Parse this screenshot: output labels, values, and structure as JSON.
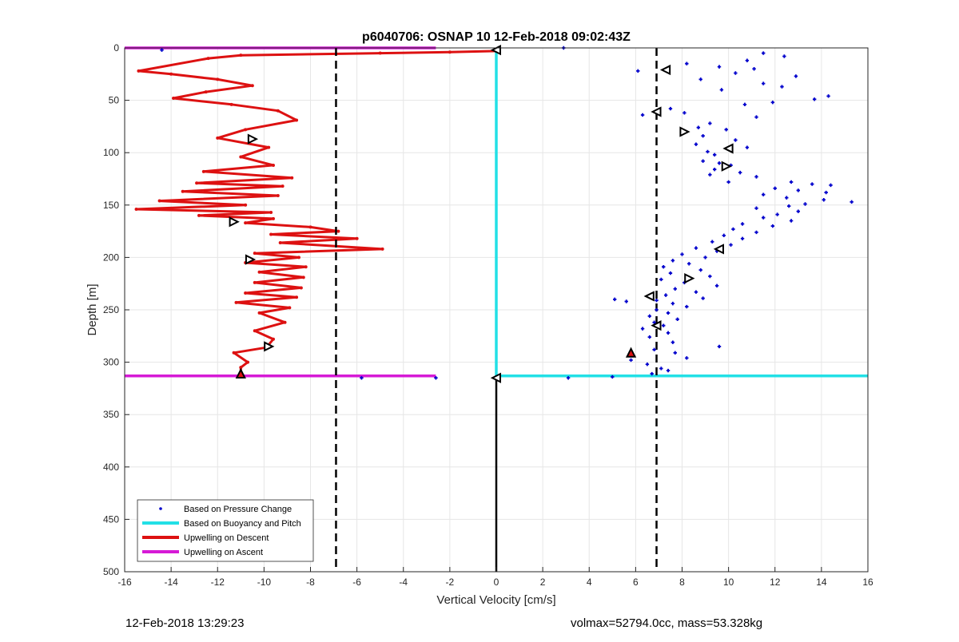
{
  "chart_data": {
    "type": "line",
    "title": "p6040706: OSNAP 10 12-Feb-2018 09:02:43Z",
    "xlabel": "Vertical Velocity [cm/s]",
    "ylabel": "Depth [m]",
    "xlim": [
      -16,
      16
    ],
    "ylim": [
      500,
      0
    ],
    "y_reversed": true,
    "grid": true,
    "xticks": [
      -16,
      -14,
      -12,
      -10,
      -8,
      -6,
      -4,
      -2,
      0,
      2,
      4,
      6,
      8,
      10,
      12,
      14,
      16
    ],
    "yticks": [
      0,
      50,
      100,
      150,
      200,
      250,
      300,
      350,
      400,
      450,
      500
    ],
    "legend_position": "bottom-left",
    "reference_lines": [
      {
        "type": "vertical-dashed",
        "x": -6.9
      },
      {
        "type": "vertical-dashed",
        "x": 6.9
      },
      {
        "type": "vertical-solid",
        "x": 0,
        "y_from": 316,
        "y_to": 500
      }
    ],
    "series": [
      {
        "name": "Based on Pressure Change",
        "style": "scatter",
        "color": "#0000cc",
        "points": [
          [
            2.9,
            0
          ],
          [
            11.5,
            5
          ],
          [
            12.4,
            8
          ],
          [
            10.8,
            12
          ],
          [
            8.2,
            15
          ],
          [
            9.6,
            18
          ],
          [
            11.1,
            20
          ],
          [
            6.1,
            22
          ],
          [
            10.3,
            24
          ],
          [
            12.9,
            27
          ],
          [
            8.8,
            30
          ],
          [
            11.5,
            34
          ],
          [
            12.3,
            37
          ],
          [
            9.7,
            40
          ],
          [
            14.3,
            46
          ],
          [
            13.7,
            49
          ],
          [
            11.9,
            52
          ],
          [
            10.7,
            54
          ],
          [
            7.5,
            58
          ],
          [
            8.1,
            62
          ],
          [
            11.2,
            66
          ],
          [
            6.3,
            64
          ],
          [
            9.2,
            72
          ],
          [
            8.7,
            76
          ],
          [
            9.9,
            78
          ],
          [
            8.9,
            84
          ],
          [
            10.3,
            88
          ],
          [
            8.6,
            92
          ],
          [
            9.1,
            99
          ],
          [
            10.8,
            95
          ],
          [
            9.4,
            102
          ],
          [
            8.9,
            108
          ],
          [
            9.6,
            110
          ],
          [
            10.1,
            112
          ],
          [
            9.4,
            116
          ],
          [
            10.5,
            119
          ],
          [
            9.2,
            121
          ],
          [
            11.2,
            123
          ],
          [
            10.0,
            128
          ],
          [
            12.7,
            128
          ],
          [
            13.6,
            130
          ],
          [
            14.4,
            131
          ],
          [
            12.0,
            134
          ],
          [
            13.0,
            136
          ],
          [
            14.2,
            138
          ],
          [
            11.5,
            140
          ],
          [
            12.5,
            143
          ],
          [
            14.1,
            145
          ],
          [
            15.3,
            147
          ],
          [
            13.3,
            149
          ],
          [
            12.6,
            151
          ],
          [
            11.2,
            153
          ],
          [
            13.0,
            156
          ],
          [
            12.1,
            159
          ],
          [
            11.5,
            162
          ],
          [
            12.7,
            165
          ],
          [
            10.6,
            168
          ],
          [
            11.9,
            170
          ],
          [
            10.2,
            173
          ],
          [
            11.2,
            176
          ],
          [
            9.8,
            179
          ],
          [
            10.6,
            182
          ],
          [
            9.3,
            185
          ],
          [
            10.1,
            188
          ],
          [
            8.6,
            191
          ],
          [
            9.5,
            194
          ],
          [
            8.0,
            197
          ],
          [
            9.0,
            200
          ],
          [
            7.6,
            203
          ],
          [
            8.3,
            206
          ],
          [
            7.2,
            209
          ],
          [
            8.8,
            212
          ],
          [
            7.5,
            215
          ],
          [
            9.2,
            218
          ],
          [
            7.1,
            221
          ],
          [
            8.1,
            224
          ],
          [
            9.5,
            227
          ],
          [
            7.7,
            230
          ],
          [
            8.6,
            233
          ],
          [
            7.3,
            236
          ],
          [
            8.9,
            239
          ],
          [
            6.9,
            241
          ],
          [
            5.1,
            240
          ],
          [
            5.6,
            242
          ],
          [
            7.6,
            244
          ],
          [
            8.2,
            247
          ],
          [
            6.9,
            250
          ],
          [
            7.4,
            253
          ],
          [
            6.6,
            256
          ],
          [
            7.8,
            259
          ],
          [
            6.8,
            262
          ],
          [
            7.2,
            265
          ],
          [
            6.3,
            268
          ],
          [
            7.4,
            272
          ],
          [
            6.6,
            276
          ],
          [
            7.6,
            281
          ],
          [
            9.6,
            285
          ],
          [
            6.8,
            288
          ],
          [
            7.7,
            291
          ],
          [
            8.2,
            296
          ],
          [
            5.8,
            298
          ],
          [
            6.5,
            302
          ],
          [
            7.1,
            306
          ],
          [
            7.4,
            308
          ],
          [
            6.7,
            311
          ],
          [
            -14.4,
            2
          ],
          [
            -5.8,
            315
          ],
          [
            -2.6,
            315
          ],
          [
            3.1,
            315
          ],
          [
            5.0,
            314
          ]
        ]
      },
      {
        "name": "Based on Buoyancy and Pitch",
        "style": "line",
        "color": "#22e0e6",
        "points": [
          [
            0,
            0
          ],
          [
            0,
            313
          ],
          [
            16,
            313
          ]
        ]
      },
      {
        "name": "Upwelling on Descent",
        "style": "line",
        "color": "#dd1111",
        "points": [
          [
            0,
            3
          ],
          [
            -2,
            4
          ],
          [
            -5,
            5
          ],
          [
            -11,
            7
          ],
          [
            -12.4,
            10
          ],
          [
            -15.4,
            22
          ],
          [
            -14.0,
            25
          ],
          [
            -12.0,
            30
          ],
          [
            -10.5,
            36
          ],
          [
            -12.5,
            42
          ],
          [
            -13.9,
            48
          ],
          [
            -11.4,
            54
          ],
          [
            -9.4,
            60
          ],
          [
            -8.6,
            69
          ],
          [
            -10.8,
            78
          ],
          [
            -12.0,
            86
          ],
          [
            -9.8,
            95
          ],
          [
            -11.0,
            104
          ],
          [
            -9.6,
            112
          ],
          [
            -12.6,
            118
          ],
          [
            -8.8,
            124
          ],
          [
            -12.9,
            129
          ],
          [
            -9.2,
            132
          ],
          [
            -13.5,
            137
          ],
          [
            -9.4,
            141
          ],
          [
            -14.5,
            146
          ],
          [
            -10.8,
            150
          ],
          [
            -15.5,
            154
          ],
          [
            -9.7,
            157
          ],
          [
            -12.8,
            160
          ],
          [
            -9.6,
            163
          ],
          [
            -10.8,
            167
          ],
          [
            -8.0,
            171
          ],
          [
            -6.8,
            175
          ],
          [
            -9.7,
            178
          ],
          [
            -6.0,
            182
          ],
          [
            -9.3,
            186
          ],
          [
            -4.9,
            192
          ],
          [
            -10.4,
            196
          ],
          [
            -8.5,
            200
          ],
          [
            -10.8,
            205
          ],
          [
            -8.2,
            209
          ],
          [
            -10.2,
            214
          ],
          [
            -8.3,
            219
          ],
          [
            -10.4,
            224
          ],
          [
            -8.4,
            229
          ],
          [
            -10.8,
            234
          ],
          [
            -8.6,
            238
          ],
          [
            -11.2,
            243
          ],
          [
            -8.9,
            248
          ],
          [
            -10.2,
            253
          ],
          [
            -9.1,
            262
          ],
          [
            -10.4,
            270
          ],
          [
            -9.6,
            278
          ],
          [
            -9.9,
            286
          ],
          [
            -11.3,
            291
          ],
          [
            -10.7,
            300
          ],
          [
            -11.0,
            305
          ],
          [
            -11.0,
            313
          ]
        ]
      },
      {
        "name": "Upwelling on Ascent",
        "style": "line",
        "color": "#d61ad6",
        "points": [
          [
            -16,
            0
          ],
          [
            -2.6,
            0
          ],
          [
            -16,
            313
          ],
          [
            -2.6,
            313
          ]
        ]
      }
    ],
    "markers": [
      {
        "type": "triangle-left",
        "x": 0,
        "y": 2
      },
      {
        "type": "triangle-left",
        "x": 7.3,
        "y": 21
      },
      {
        "type": "triangle-left",
        "x": 6.9,
        "y": 61
      },
      {
        "type": "triangle-right",
        "x": 8.1,
        "y": 80
      },
      {
        "type": "triangle-right",
        "x": -10.5,
        "y": 87
      },
      {
        "type": "triangle-left",
        "x": 10.0,
        "y": 96
      },
      {
        "type": "triangle-right",
        "x": 9.9,
        "y": 113
      },
      {
        "type": "triangle-right",
        "x": -11.3,
        "y": 166
      },
      {
        "type": "triangle-left",
        "x": 9.6,
        "y": 192
      },
      {
        "type": "triangle-right",
        "x": -10.6,
        "y": 202
      },
      {
        "type": "triangle-right",
        "x": 8.3,
        "y": 220
      },
      {
        "type": "triangle-left",
        "x": 6.6,
        "y": 237
      },
      {
        "type": "triangle-left",
        "x": 6.9,
        "y": 265
      },
      {
        "type": "triangle-right",
        "x": -9.8,
        "y": 285
      },
      {
        "type": "triangle-up",
        "x": 5.8,
        "y": 291
      },
      {
        "type": "triangle-up",
        "x": -11.0,
        "y": 311
      },
      {
        "type": "triangle-left",
        "x": 0,
        "y": 315
      }
    ]
  },
  "footer": {
    "timestamp": "12-Feb-2018 13:29:23",
    "info": "volmax=52794.0cc, mass=53.328kg"
  }
}
